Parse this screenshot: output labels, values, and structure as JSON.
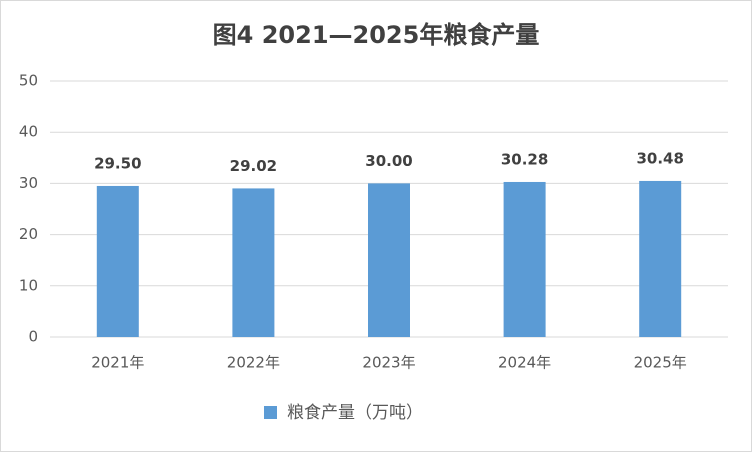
{
  "chart_data": {
    "type": "bar",
    "title": "图4  2021—2025年粮食产量",
    "categories": [
      "2021年",
      "2022年",
      "2023年",
      "2024年",
      "2025年"
    ],
    "series": [
      {
        "name": "粮食产量（万吨）",
        "color": "#5b9bd5",
        "values": [
          29.5,
          29.02,
          30.0,
          30.28,
          30.48
        ],
        "value_labels": [
          "29.50",
          "29.02",
          "30.00",
          "30.28",
          "30.48"
        ]
      }
    ],
    "ylim": [
      0,
      50
    ],
    "yticks": [
      0,
      10,
      20,
      30,
      40,
      50
    ],
    "grid": true,
    "legend": "bottom"
  }
}
